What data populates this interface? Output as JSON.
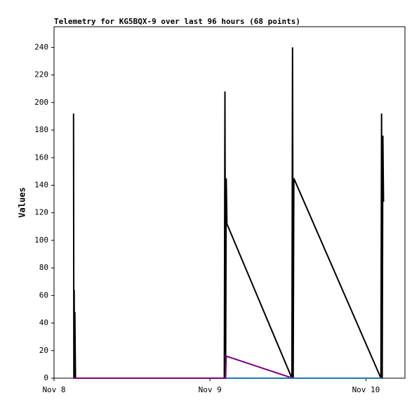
{
  "chart_data": {
    "type": "line",
    "title": "Telemetry for KG5BQX-9 over last 96 hours (68 points)",
    "y_label": "Values",
    "xlim": [
      0,
      54
    ],
    "xticks": [
      {
        "value": 0,
        "label": "Nov 8"
      },
      {
        "value": 24,
        "label": "Nov 9"
      },
      {
        "value": 48,
        "label": "Nov 10"
      }
    ],
    "ylim": [
      0,
      255
    ],
    "yticks": [
      0,
      20,
      40,
      60,
      80,
      100,
      120,
      140,
      160,
      180,
      200,
      220,
      240
    ],
    "grid": false,
    "series": [
      {
        "color": "#000000",
        "x": [
          3.0,
          3.05,
          3.1,
          3.15,
          3.2,
          3.3,
          26.2,
          26.3,
          26.4,
          26.5,
          26.6,
          36.6,
          36.7,
          36.8,
          36.9,
          50.3,
          50.4,
          50.5,
          50.6,
          50.7
        ],
        "values": [
          192,
          0,
          64,
          0,
          48,
          0,
          0,
          208,
          0,
          145,
          112,
          0,
          240,
          0,
          145,
          0,
          192,
          0,
          176,
          128
        ]
      },
      {
        "color": "#800080",
        "x": [
          3.0,
          26.4,
          26.5,
          36.7,
          50.4
        ],
        "values": [
          0,
          0,
          16,
          0,
          0
        ]
      },
      {
        "color": "#1f77b4",
        "x": [
          26.5,
          36.7,
          50.4
        ],
        "values": [
          0,
          0,
          0
        ]
      }
    ]
  }
}
